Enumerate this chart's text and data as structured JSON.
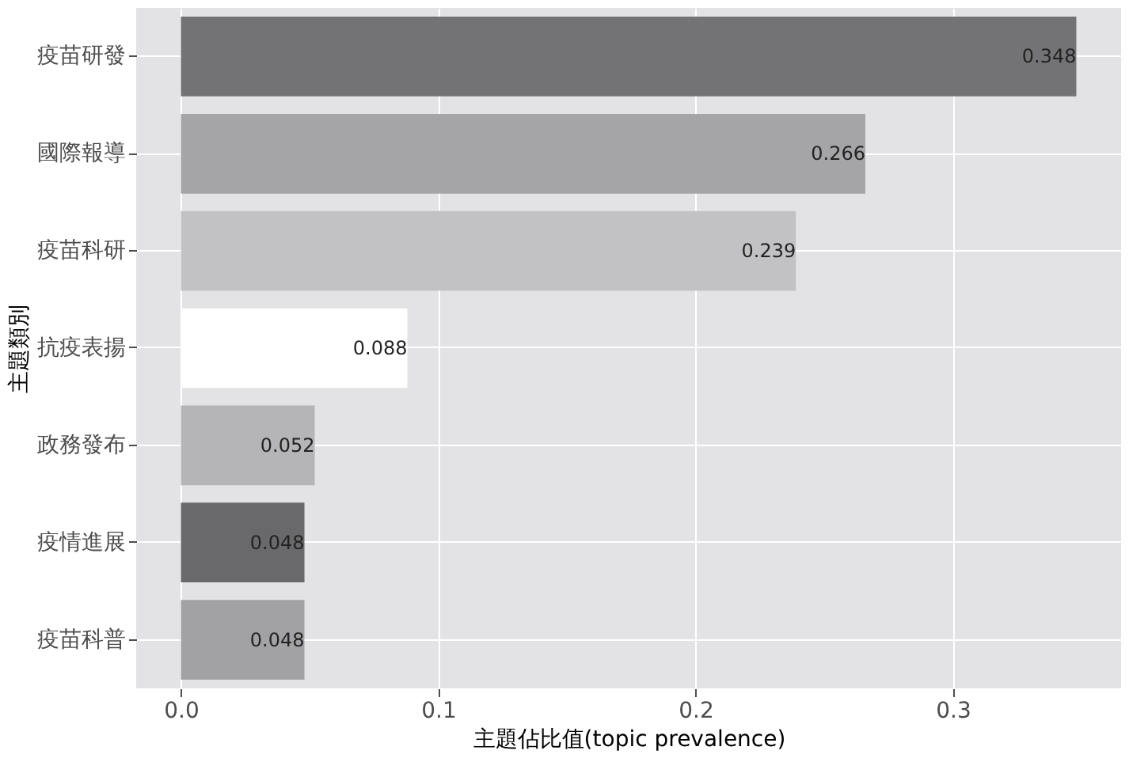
{
  "chart_data": {
    "type": "bar",
    "orientation": "horizontal",
    "xlabel": "主題佔比值(topic prevalence)",
    "ylabel": "主題類別",
    "categories": [
      "疫苗研發",
      "國際報導",
      "疫苗科研",
      "抗疫表揚",
      "政務發布",
      "疫情進展",
      "疫苗科普"
    ],
    "values": [
      0.348,
      0.266,
      0.239,
      0.088,
      0.052,
      0.048,
      0.048
    ],
    "colors": [
      "#737375",
      "#a5a5a7",
      "#c2c2c4",
      "#ffffff",
      "#b5b5b7",
      "#69696b",
      "#a2a2a4"
    ],
    "xlim": [
      -0.0174,
      0.3654
    ],
    "xticks": [
      {
        "value": 0,
        "label": "0.0"
      },
      0.1,
      0.2,
      0.3
    ],
    "grid": true,
    "data_labels": true
  }
}
